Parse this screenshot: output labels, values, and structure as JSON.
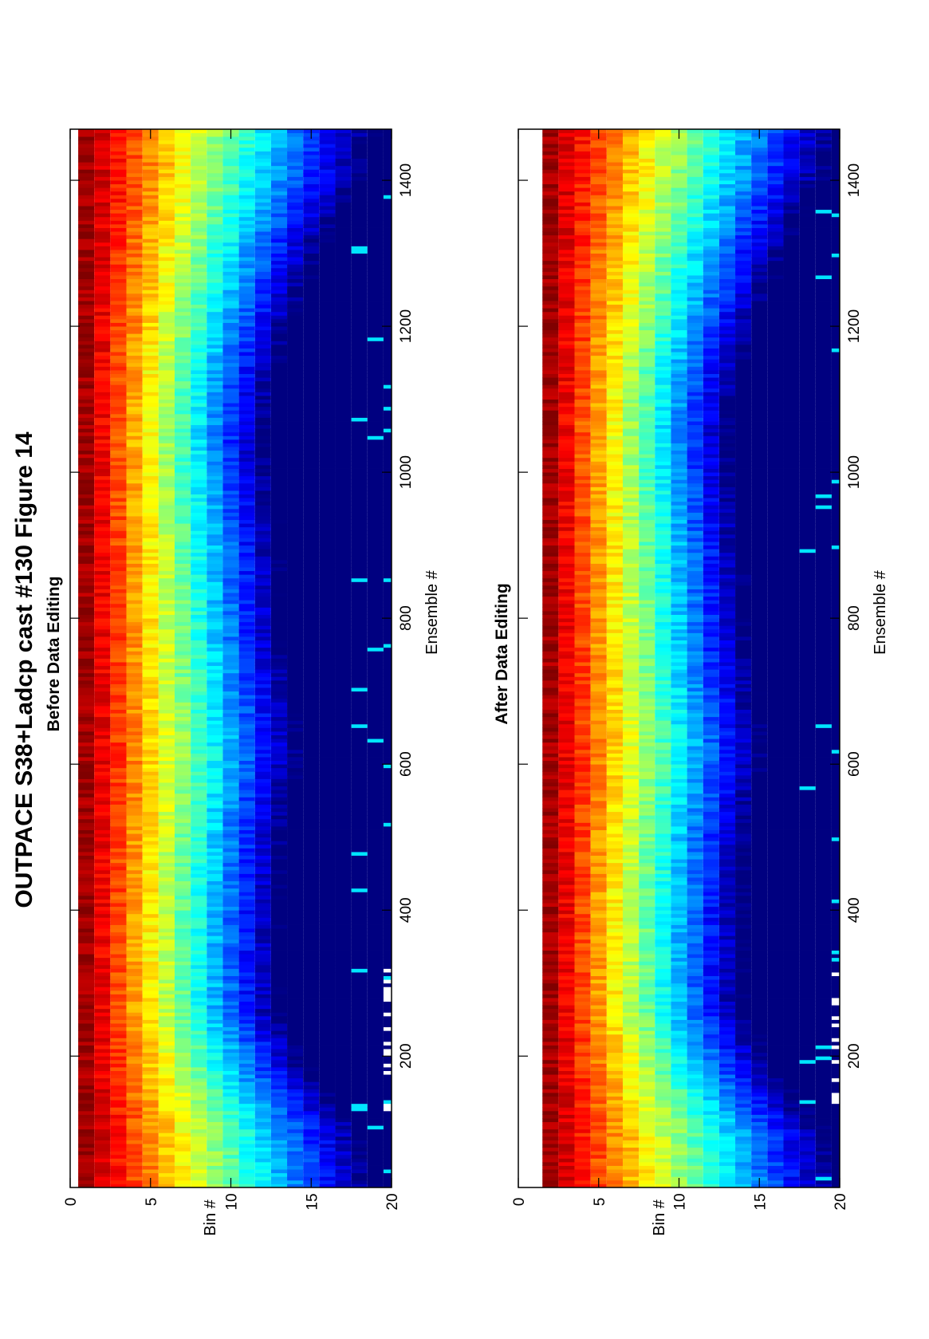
{
  "title": "OUTPACE S38+Ladcp cast #130  Figure 14",
  "chart_data": [
    {
      "type": "heatmap",
      "title": "Before Data Editing",
      "xlabel": "Ensemble #",
      "ylabel": "Bin #",
      "xlim": [
        20,
        1470
      ],
      "ylim": [
        0,
        20
      ],
      "xticks": [
        "200",
        "400",
        "600",
        "800",
        "1000",
        "1200",
        "1400"
      ],
      "yticks": [
        "0",
        "5",
        "10",
        "15",
        "20"
      ],
      "first_bin": 1,
      "colormap": "jet",
      "grid": false
    },
    {
      "type": "heatmap",
      "title": "After Data Editing",
      "xlabel": "Ensemble #",
      "ylabel": "Bin #",
      "xlim": [
        20,
        1470
      ],
      "ylim": [
        0,
        20
      ],
      "xticks": [
        "200",
        "400",
        "600",
        "800",
        "1000",
        "1200",
        "1400"
      ],
      "yticks": [
        "0",
        "5",
        "10",
        "15",
        "20"
      ],
      "first_bin": 2,
      "colormap": "jet",
      "grid": false
    }
  ]
}
